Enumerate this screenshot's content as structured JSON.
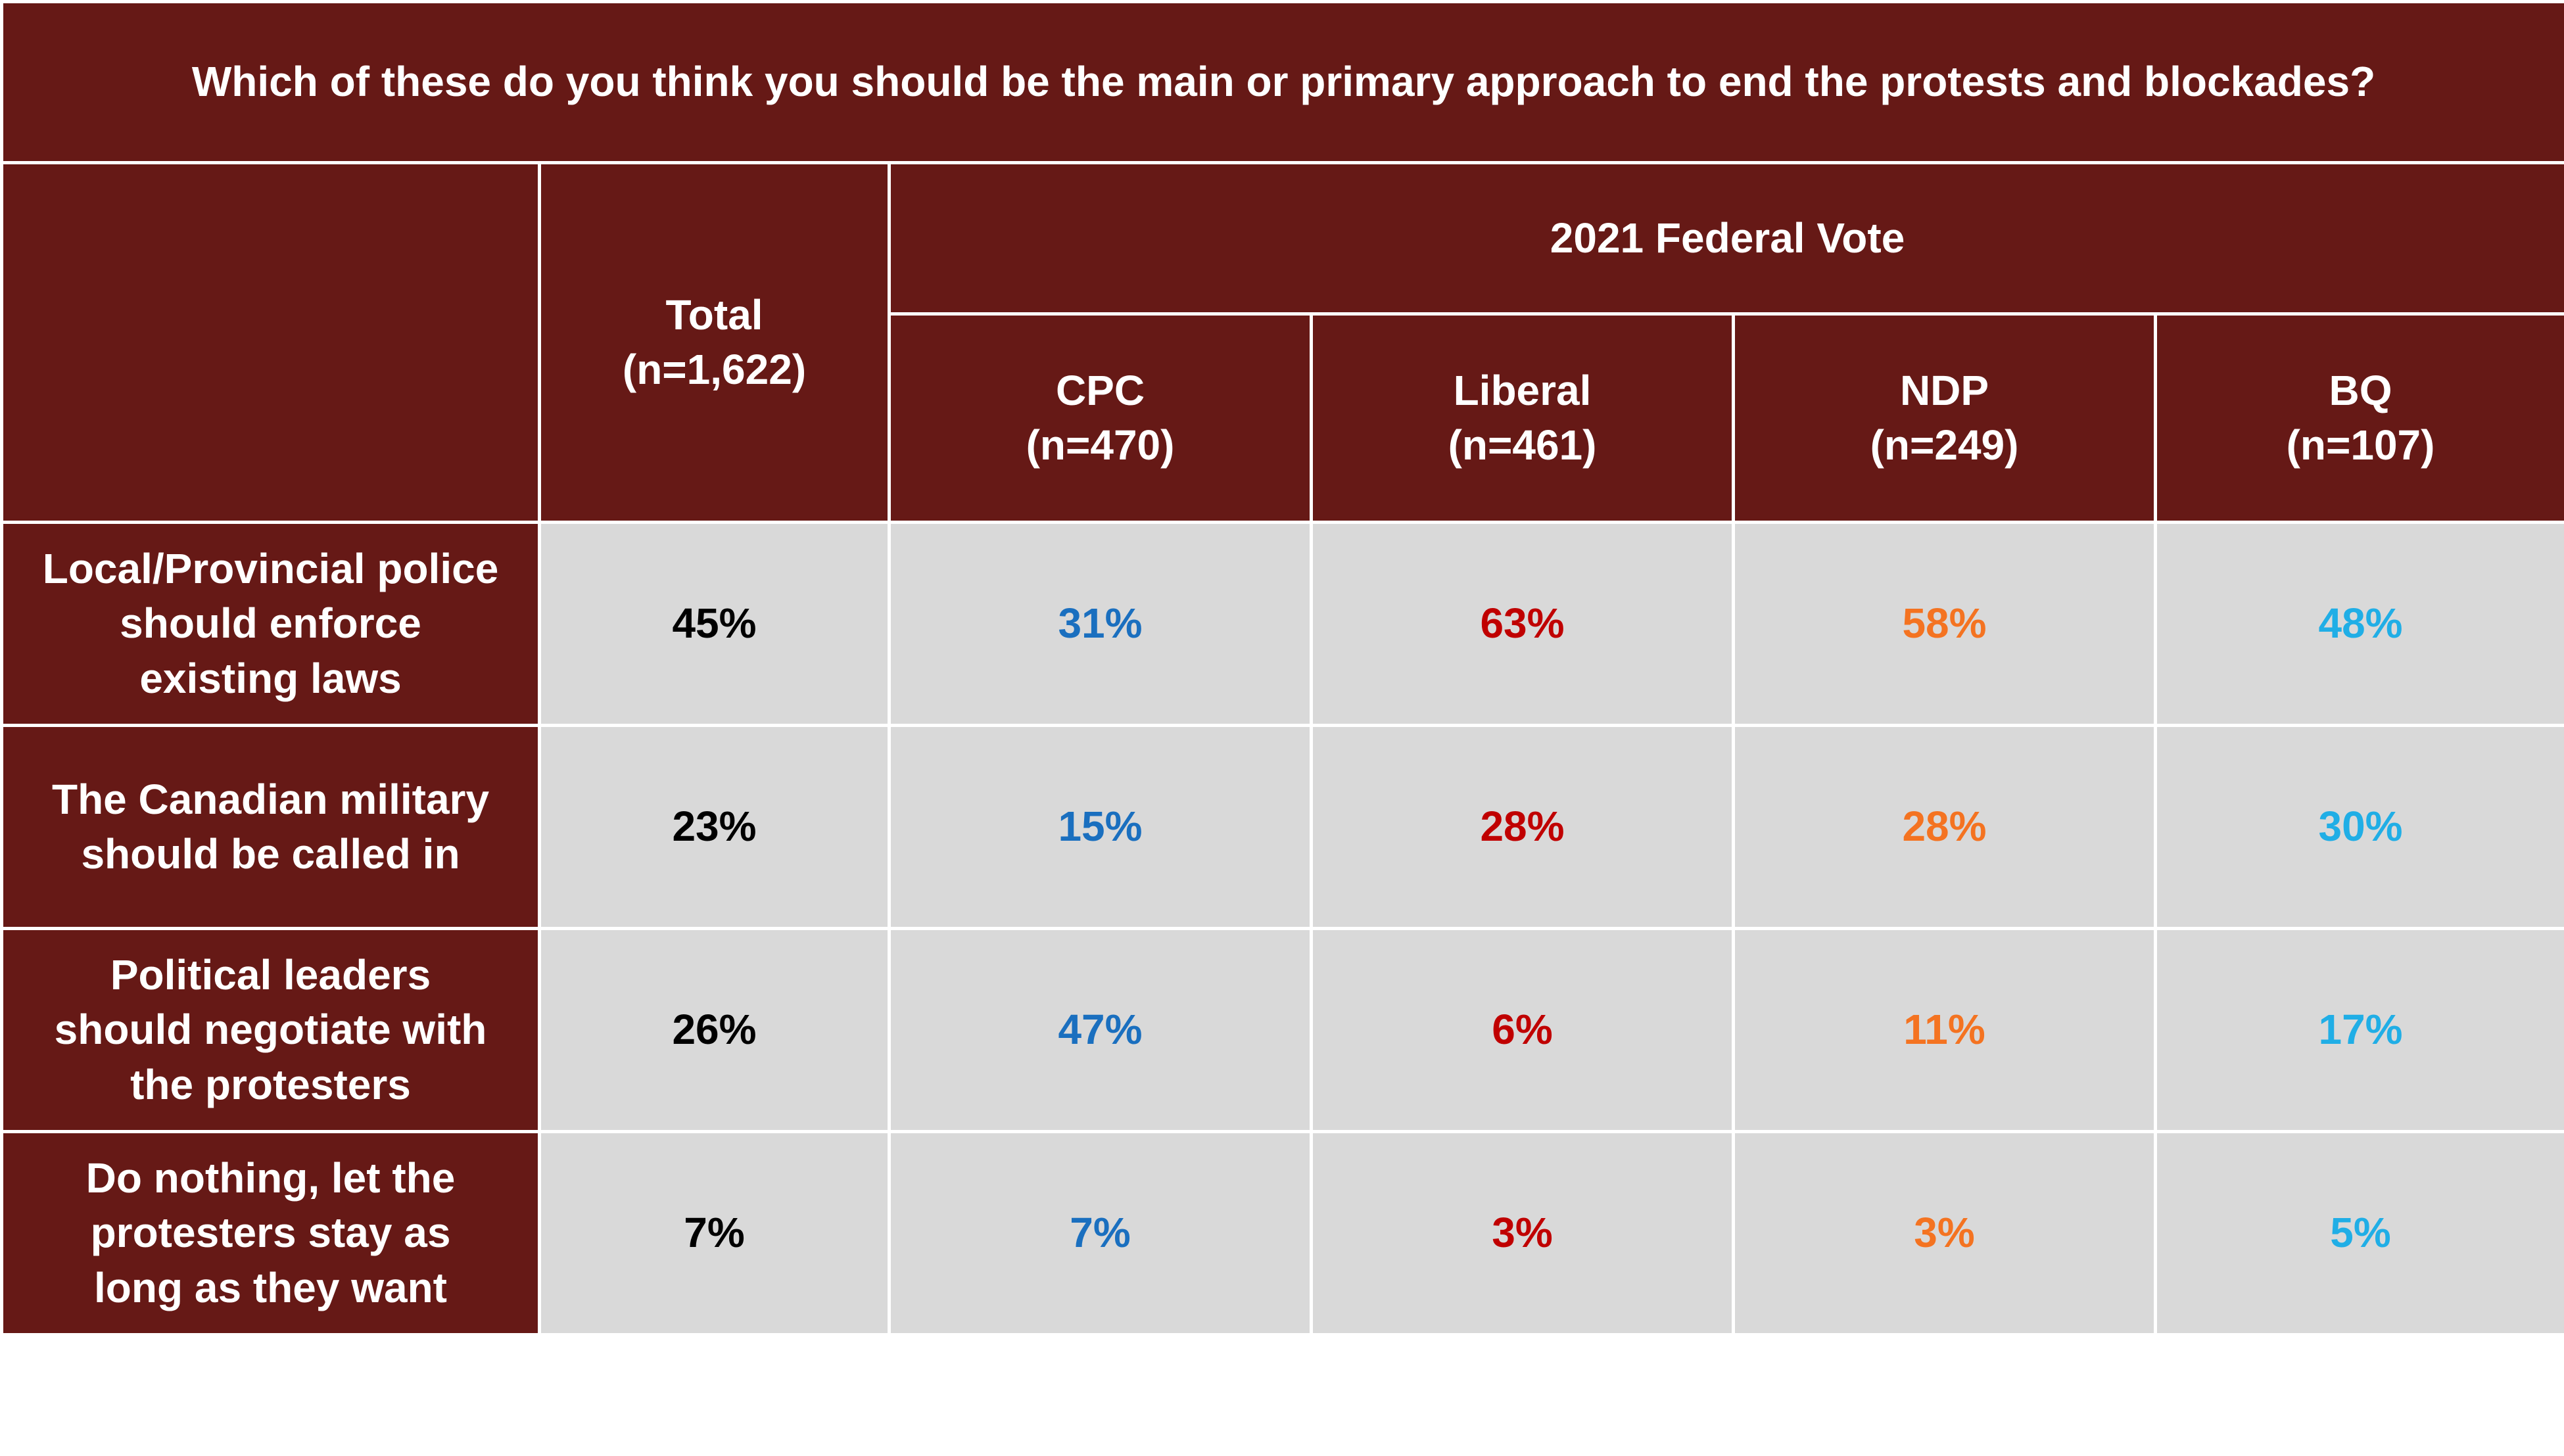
{
  "title": "Which of these do you think you should be the main or primary approach to end the protests and blockades?",
  "group_header": "2021 Federal Vote",
  "total_header": {
    "label": "Total",
    "n": "(n=1,622)"
  },
  "party_headers": [
    {
      "label": "CPC",
      "n": "(n=470)"
    },
    {
      "label": "Liberal",
      "n": "(n=461)"
    },
    {
      "label": "NDP",
      "n": "(n=249)"
    },
    {
      "label": "BQ",
      "n": "(n=107)"
    }
  ],
  "colors": {
    "header_bg": "#661916",
    "cell_bg": "#d9d9d9",
    "total": "#000000",
    "CPC": "#1a6fbf",
    "Liberal": "#c00000",
    "NDP": "#f47321",
    "BQ": "#20aee6"
  },
  "chart_data": {
    "type": "table",
    "title": "Which of these do you think you should be the main or primary approach to end the protests and blockades?",
    "columns": [
      "Total (n=1,622)",
      "CPC (n=470)",
      "Liberal (n=461)",
      "NDP (n=249)",
      "BQ (n=107)"
    ],
    "rows": [
      {
        "label_lines": [
          "Local/Provincial police",
          "should enforce",
          "existing laws"
        ],
        "values": [
          "45%",
          "31%",
          "63%",
          "58%",
          "48%"
        ]
      },
      {
        "label_lines": [
          "The Canadian military",
          "should be called in"
        ],
        "values": [
          "23%",
          "15%",
          "28%",
          "28%",
          "30%"
        ]
      },
      {
        "label_lines": [
          "Political leaders",
          "should negotiate with",
          "the protesters"
        ],
        "values": [
          "26%",
          "47%",
          "6%",
          "11%",
          "17%"
        ]
      },
      {
        "label_lines": [
          "Do nothing, let the",
          "protesters stay as",
          "long as they want"
        ],
        "values": [
          "7%",
          "7%",
          "3%",
          "3%",
          "5%"
        ]
      }
    ]
  }
}
